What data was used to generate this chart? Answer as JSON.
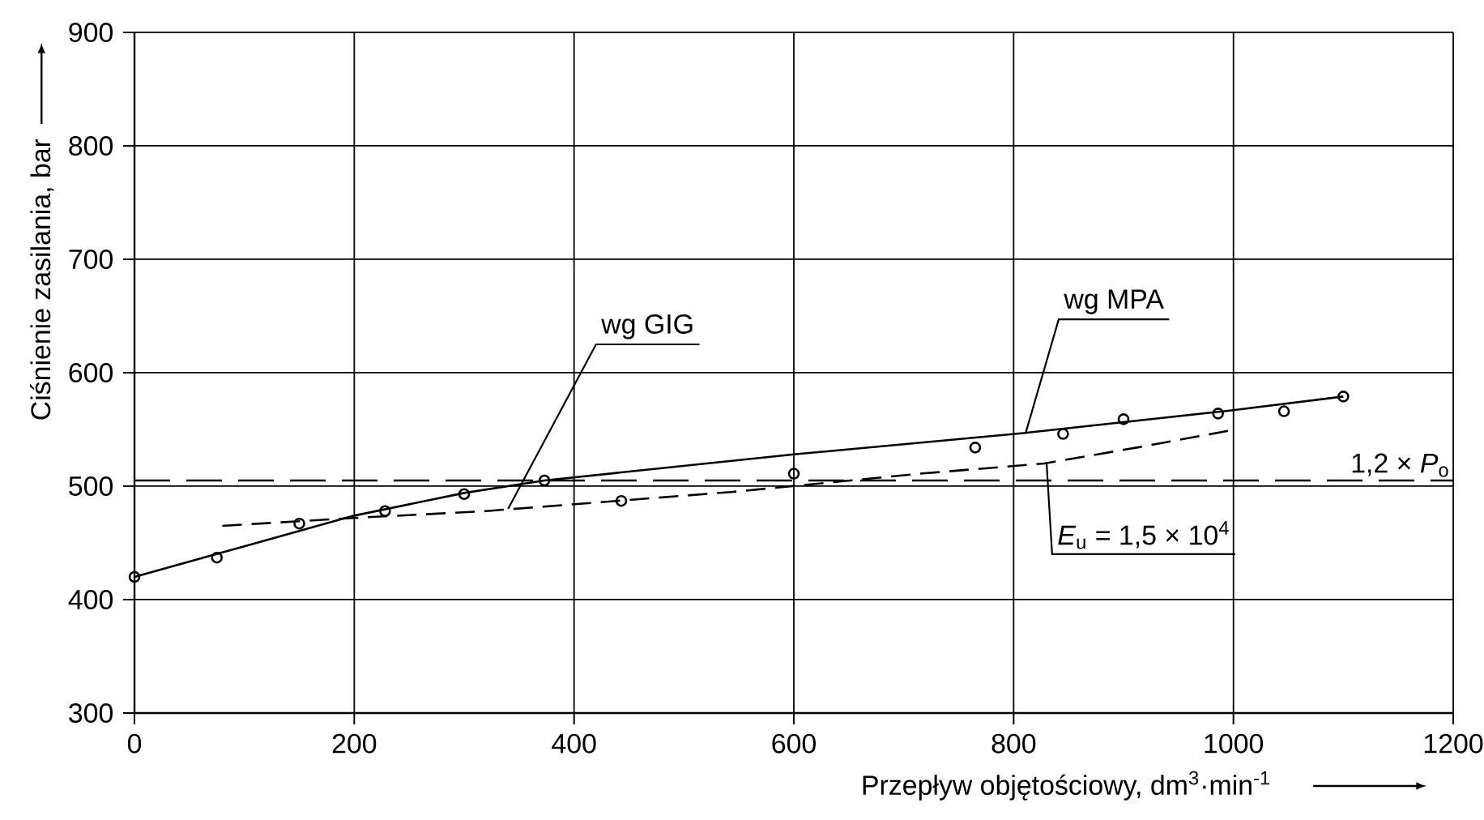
{
  "chart_data": {
    "type": "line",
    "xlabel": "Przepływ objętościowy, dm$^{3}$·min$^{-1}$",
    "ylabel": "Ciśnienie zasilania, bar",
    "xlim": [
      0,
      1200
    ],
    "ylim": [
      300,
      900
    ],
    "xticks": [
      0,
      200,
      400,
      600,
      800,
      1000,
      1200
    ],
    "yticks": [
      300,
      400,
      500,
      600,
      700,
      800,
      900
    ],
    "grid": true,
    "series": [
      {
        "type": "scatter",
        "marker": "circle",
        "color": "#000000",
        "x": [
          0,
          75,
          150,
          228,
          300,
          373,
          443,
          600,
          765,
          845,
          900,
          986,
          1046,
          1100
        ],
        "values": [
          420,
          437,
          467,
          478,
          493,
          505,
          487,
          511,
          534,
          546,
          559,
          564,
          566,
          579
        ]
      },
      {
        "line_style": "solid",
        "color": "#000000",
        "x": [
          0,
          100,
          200,
          300,
          373,
          600,
          811,
          1000,
          1100
        ],
        "values": [
          420,
          447,
          474,
          494,
          505,
          528,
          547,
          567,
          579
        ]
      },
      {
        "line_style": "dashed",
        "color": "#000000",
        "x": [
          80,
          200,
          320,
          545,
          715,
          828,
          912,
          997
        ],
        "values": [
          465,
          472,
          478,
          495,
          511,
          520,
          534,
          549
        ]
      }
    ],
    "ref_lines": [
      {
        "axis": "y",
        "value": 505,
        "label": "1,2 × *P*$_{o}$",
        "line_style": "dashed",
        "color": "#000000"
      }
    ],
    "annotations": [
      {
        "text": "wg GIG",
        "x": 340,
        "y": 480
      },
      {
        "text": "wg MPA",
        "x": 811,
        "y": 547
      },
      {
        "text": "*E*$_{u}$ = 1,5 × 10$^{4}$",
        "x": 830,
        "y": 520
      }
    ]
  }
}
